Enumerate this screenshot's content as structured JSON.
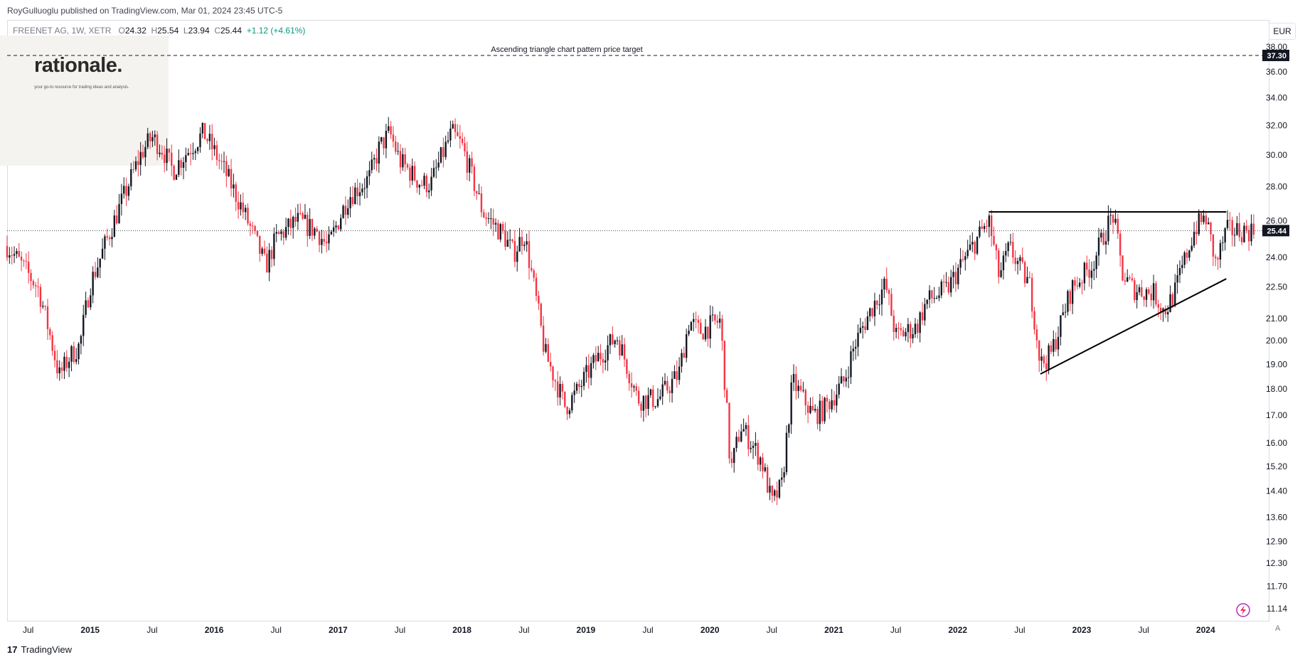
{
  "publisher_line": "RoyGulluoglu published on TradingView.com, Mar 01, 2024 23:45 UTC-5",
  "legend": {
    "symbol": "FREENET AG, 1W, XETR",
    "open_label": "O",
    "open": "24.32",
    "high_label": "H",
    "high": "25.54",
    "low_label": "L",
    "low": "23.94",
    "close_label": "C",
    "close": "25.44",
    "change": "+1.12 (+4.61%)"
  },
  "logo": {
    "name": "rationale.",
    "tagline": "your go-to resource for trading ideas and analysis."
  },
  "currency": "EUR",
  "footer": {
    "brand": "TradingView"
  },
  "auto_button": "A",
  "colors": {
    "up": "#131722",
    "down": "#f23645",
    "price_label_bg": "#131722",
    "grid": "#e0e3eb"
  },
  "icons": [
    "tradingview-logo-icon",
    "lightning-icon"
  ],
  "chart_data": {
    "type": "candlestick",
    "title": "FREENET AG, 1W, XETR",
    "log_scale": true,
    "ylim": [
      11.14,
      38.0
    ],
    "y_ticks": [
      "38.00",
      "36.00",
      "34.00",
      "32.00",
      "30.00",
      "28.00",
      "26.00",
      "24.00",
      "22.50",
      "21.00",
      "20.00",
      "19.00",
      "18.00",
      "17.00",
      "16.00",
      "15.20",
      "14.40",
      "13.60",
      "12.90",
      "12.30",
      "11.70",
      "11.14"
    ],
    "x_ticks": [
      "Jul",
      "2015",
      "Jul",
      "2016",
      "Jul",
      "2017",
      "Jul",
      "2018",
      "Jul",
      "2019",
      "Jul",
      "2020",
      "Jul",
      "2021",
      "Jul",
      "2022",
      "Jul",
      "2023",
      "Jul",
      "2024"
    ],
    "last_price": 25.44,
    "target_price": 37.3,
    "annotation": "Ascending triangle chart pattern price target",
    "resistance": {
      "from": "2022-04",
      "to": "2024-03",
      "price": 26.5
    },
    "support": {
      "from": [
        "2022-09",
        18.6
      ],
      "to": [
        "2024-03",
        22.9
      ]
    },
    "price_path": [
      [
        "2014-05",
        24.6
      ],
      [
        "2014-08",
        22.4
      ],
      [
        "2014-10",
        18.5
      ],
      [
        "2014-11",
        19.3
      ],
      [
        "2014-12",
        19.8
      ],
      [
        "2015-01",
        22.6
      ],
      [
        "2015-02",
        24.0
      ],
      [
        "2015-04",
        27.0
      ],
      [
        "2015-06",
        30.2
      ],
      [
        "2015-07",
        31.2
      ],
      [
        "2015-08",
        30.4
      ],
      [
        "2015-09",
        29.0
      ],
      [
        "2015-10",
        29.9
      ],
      [
        "2015-12",
        31.5
      ],
      [
        "2016-02",
        29.0
      ],
      [
        "2016-04",
        26.3
      ],
      [
        "2016-06",
        23.5
      ],
      [
        "2016-07",
        25.0
      ],
      [
        "2016-09",
        26.0
      ],
      [
        "2016-11",
        25.4
      ],
      [
        "2016-12",
        24.5
      ],
      [
        "2017-02",
        27.4
      ],
      [
        "2017-04",
        28.5
      ],
      [
        "2017-05",
        30.5
      ],
      [
        "2017-06",
        31.5
      ],
      [
        "2017-07",
        29.6
      ],
      [
        "2017-09",
        28.2
      ],
      [
        "2017-10",
        28.2
      ],
      [
        "2017-12",
        31.5
      ],
      [
        "2018-01",
        30.6
      ],
      [
        "2018-03",
        26.5
      ],
      [
        "2018-05",
        25.2
      ],
      [
        "2018-06",
        24.2
      ],
      [
        "2018-07",
        25.3
      ],
      [
        "2018-09",
        19.5
      ],
      [
        "2018-11",
        17.3
      ],
      [
        "2018-12",
        17.8
      ],
      [
        "2019-02",
        19.2
      ],
      [
        "2019-04",
        20.2
      ],
      [
        "2019-06",
        17.6
      ],
      [
        "2019-08",
        17.6
      ],
      [
        "2019-10",
        18.6
      ],
      [
        "2019-11",
        20.9
      ],
      [
        "2019-12",
        20.4
      ],
      [
        "2020-02",
        20.9
      ],
      [
        "2020-03",
        15.0
      ],
      [
        "2020-04",
        16.6
      ],
      [
        "2020-06",
        15.4
      ],
      [
        "2020-07",
        14.0
      ],
      [
        "2020-08",
        14.6
      ],
      [
        "2020-09",
        18.3
      ],
      [
        "2020-11",
        17.0
      ],
      [
        "2020-12",
        17.2
      ],
      [
        "2021-02",
        18.3
      ],
      [
        "2021-03",
        19.8
      ],
      [
        "2021-05",
        21.8
      ],
      [
        "2021-06",
        22.6
      ],
      [
        "2021-07",
        20.2
      ],
      [
        "2021-09",
        20.6
      ],
      [
        "2021-10",
        21.8
      ],
      [
        "2021-12",
        22.4
      ],
      [
        "2022-02",
        24.2
      ],
      [
        "2022-04",
        26.0
      ],
      [
        "2022-05",
        23.0
      ],
      [
        "2022-06",
        24.5
      ],
      [
        "2022-08",
        22.5
      ],
      [
        "2022-09",
        19.0
      ],
      [
        "2022-10",
        19.4
      ],
      [
        "2022-11",
        20.8
      ],
      [
        "2022-12",
        22.4
      ],
      [
        "2023-02",
        23.6
      ],
      [
        "2023-03",
        25.0
      ],
      [
        "2023-04",
        26.4
      ],
      [
        "2023-05",
        23.0
      ],
      [
        "2023-06",
        22.4
      ],
      [
        "2023-08",
        22.2
      ],
      [
        "2023-09",
        21.3
      ],
      [
        "2023-10",
        22.2
      ],
      [
        "2023-12",
        25.6
      ],
      [
        "2024-01",
        26.2
      ],
      [
        "2024-02",
        23.6
      ],
      [
        "2024-03",
        25.44
      ]
    ]
  }
}
